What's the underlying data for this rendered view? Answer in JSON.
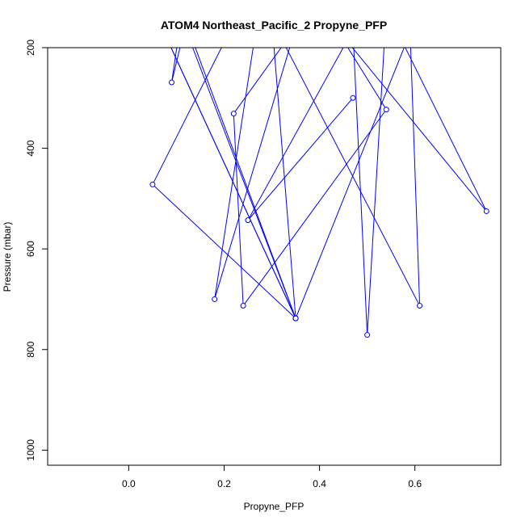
{
  "chart_data": {
    "type": "line",
    "title": "ATOM4 Northeast_Pacific_2 Propyne_PFP",
    "xlabel": "Propyne_PFP",
    "ylabel": "Pressure (mbar)",
    "xlim": [
      -0.17,
      0.78
    ],
    "ylim": [
      1030,
      200
    ],
    "y_reversed": true,
    "x_ticks": [
      0.0,
      0.2,
      0.4,
      0.6
    ],
    "x_tick_labels": [
      "0.0",
      "0.2",
      "0.4",
      "0.6"
    ],
    "y_ticks": [
      200,
      400,
      600,
      800,
      1000
    ],
    "y_tick_labels": [
      "200",
      "400",
      "600",
      "800",
      "1000"
    ],
    "grid": false,
    "legend": "none",
    "series": [
      {
        "color": "#0000ff",
        "marker": "open-circle",
        "points": [
          {
            "x": 0.47,
            "y": 300
          },
          {
            "x": 0.25,
            "y": 543
          },
          {
            "x": 0.47,
            "y": 165
          },
          {
            "x": 0.5,
            "y": 771
          },
          {
            "x": 0.54,
            "y": 124
          },
          {
            "x": 0.75,
            "y": 525
          },
          {
            "x": 0.43,
            "y": 155
          },
          {
            "x": 0.54,
            "y": 323
          },
          {
            "x": 0.24,
            "y": 713
          },
          {
            "x": 0.22,
            "y": 331
          },
          {
            "x": 0.35,
            "y": 160
          },
          {
            "x": 0.18,
            "y": 700
          },
          {
            "x": 0.29,
            "y": 20
          },
          {
            "x": 0.05,
            "y": 472
          },
          {
            "x": 0.35,
            "y": 738
          },
          {
            "x": 0.05,
            "y": 120
          },
          {
            "x": 0.35,
            "y": 738
          },
          {
            "x": 0.12,
            "y": 150
          },
          {
            "x": 0.09,
            "y": 269
          },
          {
            "x": 0.11,
            "y": 140
          },
          {
            "x": 0.35,
            "y": 738
          },
          {
            "x": 0.3,
            "y": 145
          },
          {
            "x": 0.61,
            "y": 713
          },
          {
            "x": 0.59,
            "y": 170
          },
          {
            "x": 0.35,
            "y": 738
          }
        ]
      }
    ]
  }
}
